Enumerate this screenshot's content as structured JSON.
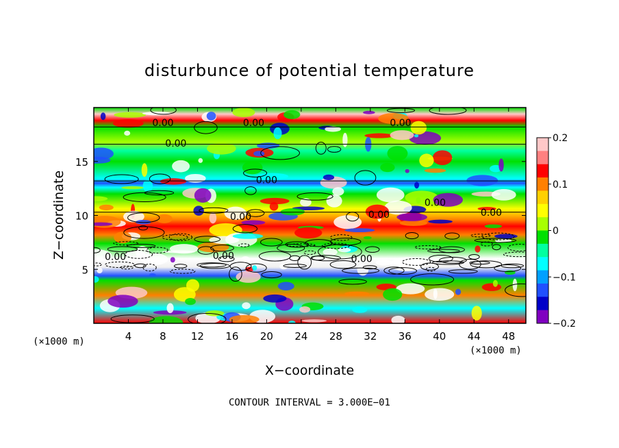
{
  "chart_data": {
    "type": "heatmap",
    "title": "disturbunce of potential temperature",
    "xlabel": "X−coordinate",
    "ylabel": "Z−coordinate",
    "x_unit_left": "(×1000 m)",
    "x_unit_right": "(×1000 m)",
    "xlim": [
      0,
      50
    ],
    "ylim": [
      0,
      20
    ],
    "x_ticks": [
      4,
      8,
      12,
      16,
      20,
      24,
      28,
      32,
      36,
      40,
      44,
      48
    ],
    "y_ticks": [
      5,
      10,
      15
    ],
    "colorbar": {
      "range": [
        -0.2,
        0.2
      ],
      "tick_labels": [
        "0.2",
        "0.1",
        "0",
        "−0.1",
        "−0.2"
      ],
      "tick_values": [
        0.2,
        0.1,
        0,
        -0.1,
        -0.2
      ],
      "colors": [
        "#ffc8c8",
        "#ff8080",
        "#ff0000",
        "#ff8000",
        "#ffd000",
        "#ffff00",
        "#a8ff00",
        "#00e000",
        "#00ffa0",
        "#00ffff",
        "#00a0ff",
        "#2050ff",
        "#0000c8",
        "#8000c0"
      ]
    },
    "contour_labels": [
      "0.00",
      "0.00",
      "0.00",
      "0.00",
      "0.00",
      "0.00",
      "0.00",
      "0.00",
      "0.00",
      "0.00",
      "0.00",
      "0.00"
    ],
    "footer": "CONTOUR INTERVAL = 3.000E−01",
    "grid": false
  }
}
